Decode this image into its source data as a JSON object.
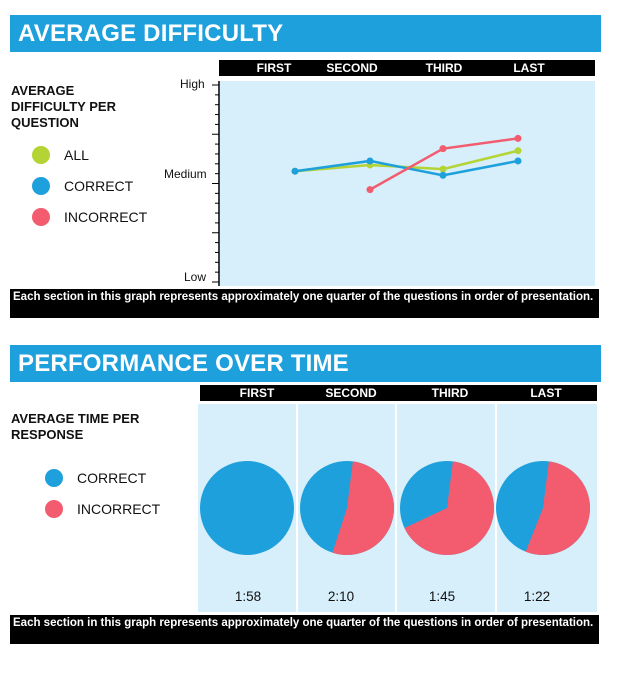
{
  "difficulty": {
    "title": "AVERAGE DIFFICULTY",
    "label": "AVERAGE DIFFICULTY PER QUESTION",
    "legend": [
      {
        "name": "ALL",
        "color": "#b4d334"
      },
      {
        "name": "CORRECT",
        "color": "#1ea0dc"
      },
      {
        "name": "INCORRECT",
        "color": "#f25c6e"
      }
    ],
    "footer": "Each section in this graph represents approximately one quarter of the questions in order of presentation."
  },
  "performance": {
    "title": "PERFORMANCE OVER TIME",
    "label": "AVERAGE TIME PER RESPONSE",
    "legend": [
      {
        "name": "CORRECT",
        "color": "#1ea0dc"
      },
      {
        "name": "INCORRECT",
        "color": "#f25c6e"
      }
    ],
    "footer": "Each section in this graph represents approximately one quarter of the questions in order of presentation."
  },
  "chart_data": [
    {
      "type": "line",
      "categories": [
        "FIRST",
        "SECOND",
        "THIRD",
        "LAST"
      ],
      "y_tick_labels": [
        "High",
        "Medium",
        "Low"
      ],
      "ylim": [
        0,
        1
      ],
      "series": [
        {
          "name": "ALL",
          "color": "#b4d334",
          "values": [
            0.56,
            0.59,
            0.57,
            0.66
          ]
        },
        {
          "name": "CORRECT",
          "color": "#1ea0dc",
          "values": [
            0.56,
            0.61,
            0.54,
            0.61
          ]
        },
        {
          "name": "INCORRECT",
          "color": "#f25c6e",
          "values": [
            null,
            0.47,
            0.67,
            0.72
          ]
        }
      ],
      "grid": false,
      "legend_placement": "left"
    },
    {
      "type": "pie",
      "categories": [
        "FIRST",
        "SECOND",
        "THIRD",
        "LAST"
      ],
      "times": [
        "1:58",
        "2:10",
        "1:45",
        "1:22"
      ],
      "slice_labels": [
        "CORRECT",
        "INCORRECT"
      ],
      "incorrect_share": [
        0.0,
        0.53,
        0.66,
        0.54
      ],
      "colors": {
        "CORRECT": "#1ea0dc",
        "INCORRECT": "#f25c6e"
      },
      "legend_placement": "left"
    }
  ]
}
